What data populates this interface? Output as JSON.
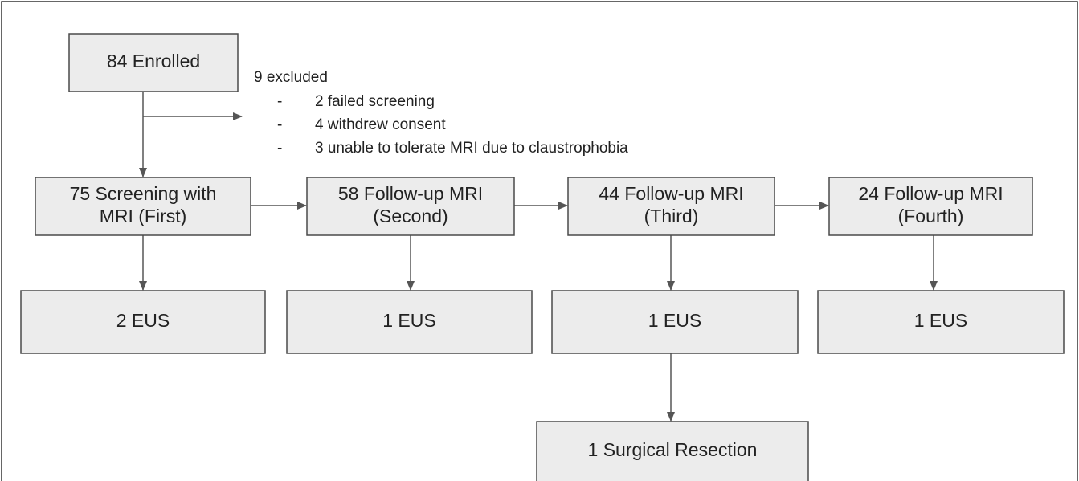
{
  "nodes": [
    {
      "lines": [
        "84 Enrolled"
      ]
    },
    {
      "lines": [
        "75 Screening with",
        "MRI (First)"
      ]
    },
    {
      "lines": [
        "58 Follow-up MRI",
        "(Second)"
      ]
    },
    {
      "lines": [
        "44 Follow-up MRI",
        "(Third)"
      ]
    },
    {
      "lines": [
        "24 Follow-up MRI",
        "(Fourth)"
      ]
    },
    {
      "lines": [
        "2 EUS"
      ]
    },
    {
      "lines": [
        "1 EUS"
      ]
    },
    {
      "lines": [
        "1 EUS"
      ]
    },
    {
      "lines": [
        "1 EUS"
      ]
    },
    {
      "lines": [
        "1 Surgical Resection"
      ]
    }
  ],
  "exclusion": {
    "title": "9 excluded",
    "bullet": "-",
    "items": [
      "2 failed screening",
      "4 withdrew consent",
      "3 unable to tolerate MRI due to claustrophobia"
    ]
  }
}
